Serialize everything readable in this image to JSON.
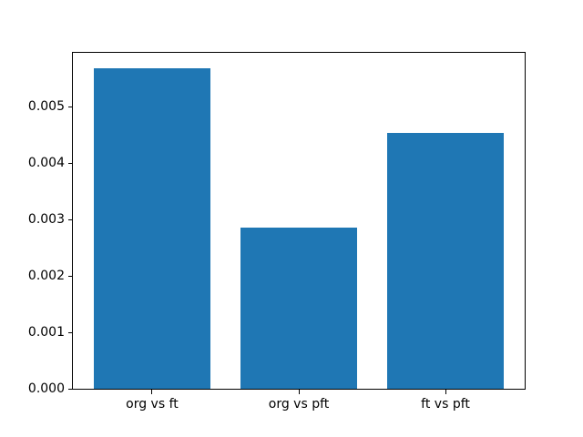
{
  "chart_data": {
    "type": "bar",
    "categories": [
      "org vs ft",
      "org vs pft",
      "ft vs pft"
    ],
    "values": [
      0.00568,
      0.00286,
      0.00454
    ],
    "title": "",
    "xlabel": "",
    "ylabel": "",
    "ylim": [
      0,
      0.005964
    ],
    "xlim": [
      -0.54,
      2.54
    ],
    "bar_width": 0.8,
    "bar_color": "#1f77b4",
    "axes_color": "#000000",
    "background_color": "#ffffff",
    "grid": false,
    "legend": null,
    "y_ticks": [
      {
        "value": 0.0,
        "label": "0.000"
      },
      {
        "value": 0.001,
        "label": "0.001"
      },
      {
        "value": 0.002,
        "label": "0.002"
      },
      {
        "value": 0.003,
        "label": "0.003"
      },
      {
        "value": 0.004,
        "label": "0.004"
      },
      {
        "value": 0.005,
        "label": "0.005"
      }
    ]
  }
}
